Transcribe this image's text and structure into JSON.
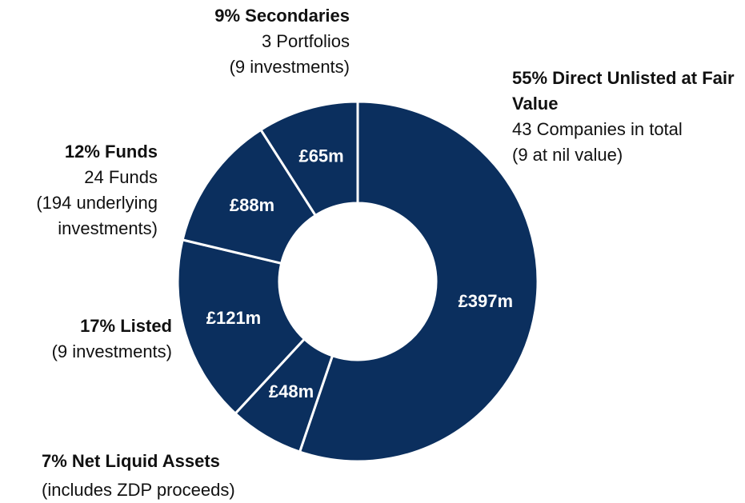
{
  "chart_data": {
    "type": "donut",
    "categories": [
      "55% Direct Unlisted at Fair Value",
      "7% Net Liquid Assets",
      "17% Listed",
      "12% Funds",
      "9% Secondaries"
    ],
    "details": [
      [
        "43 Companies in total",
        "(9 at nil value)"
      ],
      [
        "(includes ZDP proceeds)"
      ],
      [
        "(9 investments)"
      ],
      [
        "24 Funds",
        "(194 underlying investments)"
      ],
      [
        "3 Portfolios",
        "(9 investments)"
      ]
    ],
    "values": [
      397,
      48,
      121,
      88,
      65
    ],
    "value_labels": [
      "£397m",
      "£48m",
      "£121m",
      "£88m",
      "£65m"
    ],
    "color": "#0b2f5e"
  }
}
